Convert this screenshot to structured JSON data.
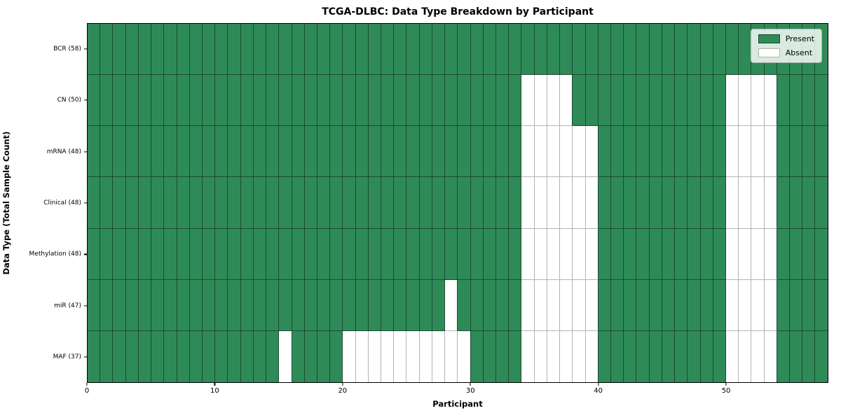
{
  "chart_data": {
    "type": "heatmap",
    "title": "TCGA-DLBC: Data Type Breakdown by Participant",
    "xlabel": "Participant",
    "ylabel": "Data Type (Total Sample Count)",
    "n_participants": 58,
    "x_range": [
      0,
      58
    ],
    "x_ticks": [
      0,
      10,
      20,
      30,
      40,
      50
    ],
    "grid": "cell-edges",
    "rows": [
      {
        "label": "BCR (58)",
        "present_count": 58,
        "absent_columns": []
      },
      {
        "label": "CN (50)",
        "present_count": 50,
        "absent_columns": [
          34,
          35,
          36,
          37,
          50,
          51,
          52,
          53
        ]
      },
      {
        "label": "mRNA (48)",
        "present_count": 48,
        "absent_columns": [
          34,
          35,
          36,
          37,
          38,
          39,
          50,
          51,
          52,
          53
        ]
      },
      {
        "label": "Clinical (48)",
        "present_count": 48,
        "absent_columns": [
          34,
          35,
          36,
          37,
          38,
          39,
          50,
          51,
          52,
          53
        ]
      },
      {
        "label": "Methylation (48)",
        "present_count": 48,
        "absent_columns": [
          34,
          35,
          36,
          37,
          38,
          39,
          50,
          51,
          52,
          53
        ]
      },
      {
        "label": "miR (47)",
        "present_count": 47,
        "absent_columns": [
          28,
          34,
          35,
          36,
          37,
          38,
          39,
          50,
          51,
          52,
          53
        ]
      },
      {
        "label": "MAF (37)",
        "present_count": 37,
        "absent_columns": [
          15,
          20,
          21,
          22,
          23,
          24,
          25,
          26,
          27,
          28,
          29,
          34,
          35,
          36,
          37,
          38,
          39,
          50,
          51,
          52,
          53
        ]
      }
    ],
    "legend": {
      "position": "upper right",
      "entries": [
        {
          "label": "Present",
          "color": "#2e8b57"
        },
        {
          "label": "Absent",
          "color": "#ffffff"
        }
      ]
    },
    "colors": {
      "present": "#2e8b57",
      "absent": "#ffffff",
      "edge_on_present": "#1c4a33",
      "edge_on_absent": "#b3b3b3",
      "spine": "#000000",
      "background": "#ffffff"
    }
  }
}
